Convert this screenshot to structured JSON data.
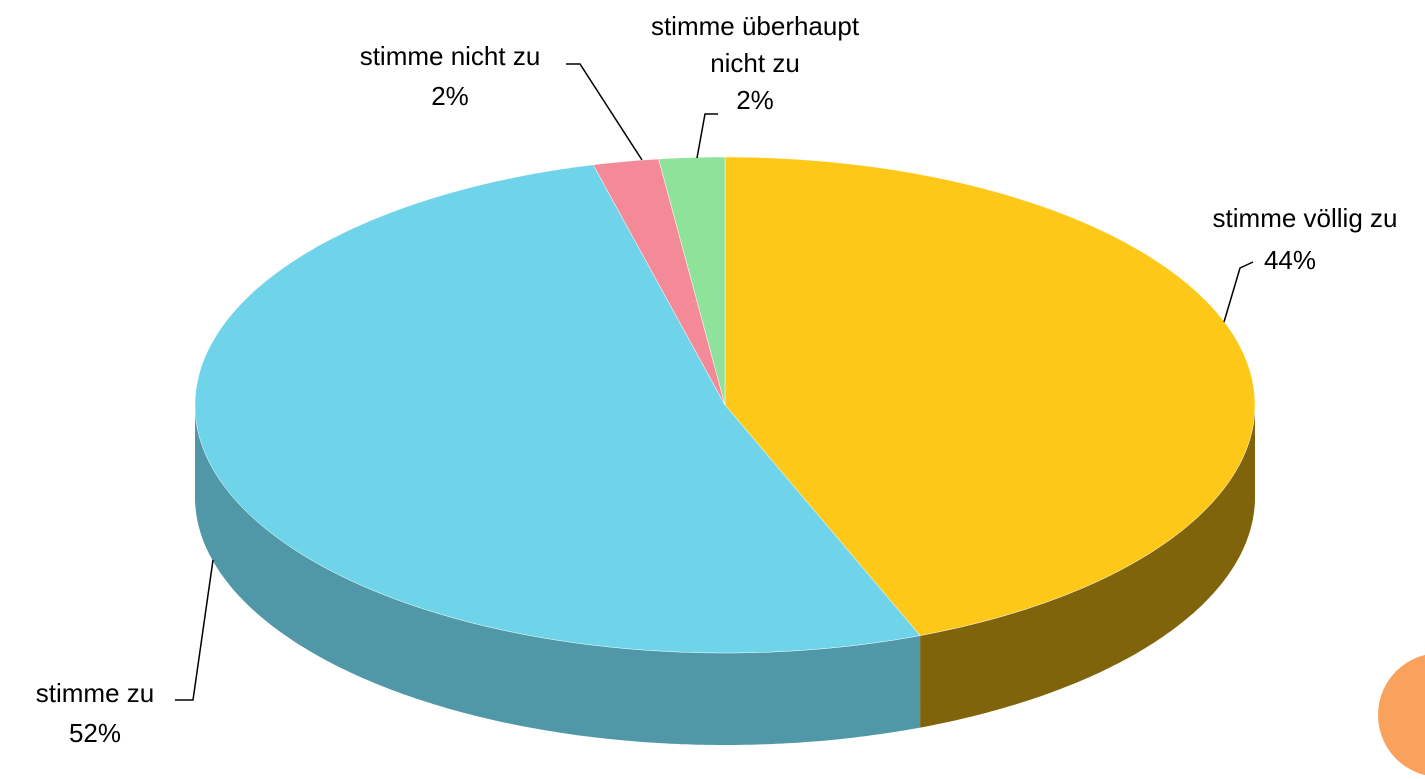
{
  "chart_data": {
    "type": "pie",
    "categories": [
      "stimme völlig zu",
      "stimme zu",
      "stimme nicht zu",
      "stimme überhaupt nicht zu"
    ],
    "values": [
      44,
      52,
      2,
      2
    ],
    "value_labels": [
      "44%",
      "52%",
      "2%",
      "2%"
    ],
    "colors": [
      "#fdc817",
      "#6fd3ea",
      "#f48a98",
      "#8fe29a"
    ]
  }
}
